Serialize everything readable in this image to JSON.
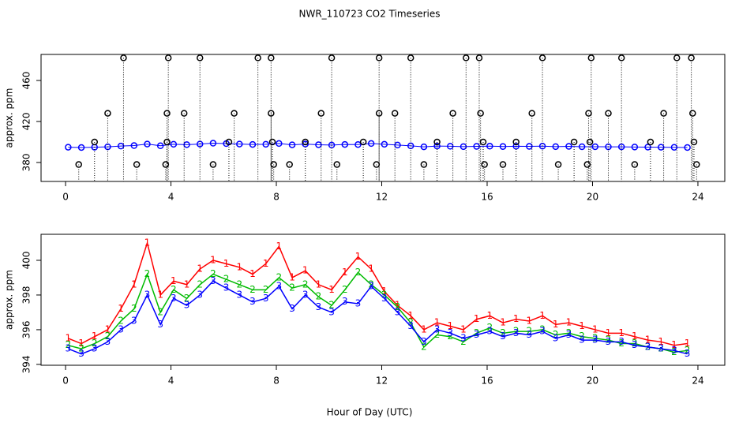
{
  "chart_data": [
    {
      "type": "scatter",
      "title": "NWR_110723  CO2 Timeseries",
      "y_label": "approx. ppm",
      "xlim": [
        -0.93,
        25.02
      ],
      "xticks": [
        0,
        4,
        8,
        12,
        16,
        20,
        24
      ],
      "ylim": [
        361.5,
        485.4
      ],
      "yticks": [
        380,
        420,
        460
      ],
      "series": [
        {
          "color": "#0000ff",
          "style": "line-points",
          "x": [
            0.1,
            0.6,
            1.1,
            1.6,
            2.1,
            2.6,
            3.1,
            3.6,
            4.1,
            4.6,
            5.1,
            5.6,
            6.1,
            6.6,
            7.1,
            7.6,
            8.1,
            8.6,
            9.1,
            9.6,
            10.1,
            10.6,
            11.1,
            11.6,
            12.1,
            12.6,
            13.1,
            13.6,
            14.1,
            14.6,
            15.1,
            15.6,
            16.1,
            16.6,
            17.1,
            17.6,
            18.1,
            18.6,
            19.1,
            19.6,
            20.1,
            20.6,
            21.1,
            21.6,
            22.1,
            22.6,
            23.1,
            23.6
          ],
          "values": [
            394.9,
            394.6,
            394.9,
            395.3,
            396.0,
            396.5,
            398.0,
            396.3,
            397.8,
            397.4,
            398.0,
            398.8,
            398.4,
            398.0,
            397.6,
            397.8,
            398.5,
            397.2,
            398.0,
            397.3,
            397.0,
            397.6,
            397.5,
            398.5,
            397.8,
            397.0,
            396.2,
            395.3,
            396.0,
            395.8,
            395.5,
            395.7,
            395.9,
            395.6,
            395.8,
            395.7,
            395.9,
            395.5,
            395.7,
            395.4,
            395.4,
            395.3,
            395.3,
            395.1,
            395.0,
            394.9,
            394.8,
            394.6
          ]
        },
        {
          "color": "#000000",
          "style": "spikes",
          "x": [
            0.5,
            1.1,
            1.6,
            2.2,
            2.7,
            3.8,
            3.85,
            3.9,
            3.85,
            4.5,
            5.1,
            5.6,
            6.4,
            6.2,
            7.3,
            7.8,
            7.8,
            7.9,
            7.85,
            8.5,
            9.1,
            9.7,
            10.1,
            10.3,
            11.3,
            11.8,
            11.9,
            11.9,
            12.5,
            13.1,
            13.6,
            14.1,
            14.7,
            15.2,
            15.7,
            15.75,
            15.85,
            15.9,
            16.6,
            17.1,
            17.7,
            18.1,
            18.7,
            19.3,
            19.8,
            19.85,
            19.9,
            19.95,
            20.6,
            21.1,
            21.6,
            22.2,
            22.7,
            23.2,
            23.75,
            23.8,
            23.85,
            23.95
          ],
          "values": [
            378,
            400,
            428,
            482,
            378,
            378,
            428,
            482,
            400,
            428,
            482,
            378,
            428,
            400,
            482,
            482,
            428,
            378,
            400,
            378,
            400,
            428,
            482,
            378,
            400,
            378,
            428,
            482,
            428,
            482,
            378,
            400,
            428,
            482,
            482,
            428,
            400,
            378,
            378,
            400,
            428,
            482,
            378,
            400,
            378,
            428,
            400,
            482,
            428,
            482,
            378,
            400,
            428,
            482,
            482,
            428,
            400,
            378
          ]
        }
      ]
    },
    {
      "type": "line",
      "y_label": "approx. ppm",
      "x_label": "Hour of Day (UTC)",
      "xlim": [
        -0.93,
        25.02
      ],
      "xticks": [
        0,
        4,
        8,
        12,
        16,
        20,
        24
      ],
      "ylim": [
        393.95,
        401.5
      ],
      "yticks": [
        394,
        396,
        398,
        400
      ],
      "x": [
        0.1,
        0.6,
        1.1,
        1.6,
        2.1,
        2.6,
        3.1,
        3.6,
        4.1,
        4.6,
        5.1,
        5.6,
        6.1,
        6.6,
        7.1,
        7.6,
        8.1,
        8.6,
        9.1,
        9.6,
        10.1,
        10.6,
        11.1,
        11.6,
        12.1,
        12.6,
        13.1,
        13.6,
        14.1,
        14.6,
        15.1,
        15.6,
        16.1,
        16.6,
        17.1,
        17.6,
        18.1,
        18.6,
        19.1,
        19.6,
        20.1,
        20.6,
        21.1,
        21.6,
        22.1,
        22.6,
        23.1,
        23.6
      ],
      "series": [
        {
          "marker": "1",
          "color": "#ff0000",
          "values": [
            395.5,
            395.2,
            395.6,
            396.0,
            397.2,
            398.6,
            401.0,
            398.0,
            398.8,
            398.6,
            399.5,
            400.0,
            399.8,
            399.6,
            399.2,
            399.8,
            400.8,
            399.0,
            399.4,
            398.6,
            398.3,
            399.3,
            400.2,
            399.5,
            398.2,
            397.4,
            396.8,
            396.0,
            396.4,
            396.2,
            396.0,
            396.6,
            396.8,
            396.4,
            396.6,
            396.5,
            396.8,
            396.3,
            396.4,
            396.2,
            396.0,
            395.8,
            395.8,
            395.6,
            395.4,
            395.3,
            395.1,
            395.2
          ]
        },
        {
          "marker": "2",
          "color": "#00bb00",
          "values": [
            395.1,
            394.9,
            395.2,
            395.6,
            396.5,
            397.2,
            399.2,
            397.0,
            398.3,
            397.8,
            398.6,
            399.2,
            398.9,
            398.6,
            398.3,
            398.3,
            399.0,
            398.4,
            398.6,
            397.9,
            397.4,
            398.3,
            399.3,
            398.6,
            398.0,
            397.3,
            396.4,
            395.0,
            395.7,
            395.6,
            395.3,
            395.8,
            396.1,
            395.8,
            395.9,
            395.9,
            396.0,
            395.7,
            395.8,
            395.6,
            395.5,
            395.4,
            395.2,
            395.2,
            395.0,
            394.9,
            394.7,
            394.8
          ]
        },
        {
          "marker": "3",
          "color": "#0000ff",
          "values": [
            394.9,
            394.6,
            394.9,
            395.3,
            396.0,
            396.5,
            398.0,
            396.3,
            397.8,
            397.4,
            398.0,
            398.8,
            398.4,
            398.0,
            397.6,
            397.8,
            398.5,
            397.2,
            398.0,
            397.3,
            397.0,
            397.6,
            397.5,
            398.5,
            397.8,
            397.0,
            396.2,
            395.3,
            396.0,
            395.8,
            395.5,
            395.7,
            395.9,
            395.6,
            395.8,
            395.7,
            395.9,
            395.5,
            395.7,
            395.4,
            395.4,
            395.3,
            395.3,
            395.1,
            395.0,
            394.9,
            394.8,
            394.6
          ]
        }
      ]
    }
  ]
}
